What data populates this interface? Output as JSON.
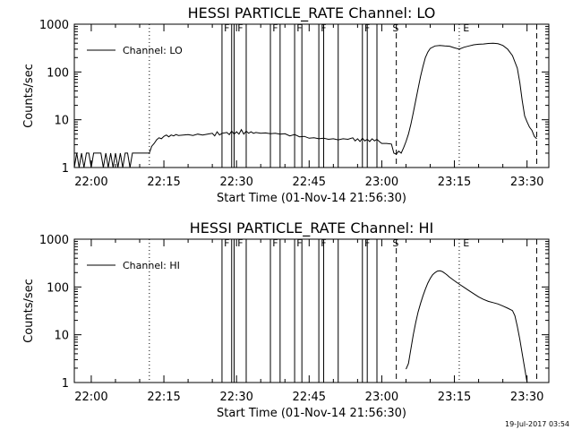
{
  "figure": {
    "timestamp": "19-Jul-2017 03:54"
  },
  "chart_data": [
    {
      "type": "line",
      "title": "HESSI PARTICLE_RATE Channel: LO",
      "xlabel": "Start Time (01-Nov-14 21:56:30)",
      "ylabel": "Counts/sec",
      "yscale": "log",
      "ylim": [
        1,
        1000
      ],
      "ytick_labels": [
        "1",
        "10",
        "100",
        "1000"
      ],
      "ytick_values": [
        1,
        10,
        100,
        1000
      ],
      "xlim": [
        "21:56:30",
        "23:34:30"
      ],
      "xtick_labels": [
        "22:00",
        "22:15",
        "22:30",
        "22:45",
        "23:00",
        "23:15",
        "23:30"
      ],
      "xtick_values": [
        "22:00",
        "22:15",
        "22:30",
        "22:45",
        "23:00",
        "23:15",
        "23:30"
      ],
      "grid": false,
      "legend": {
        "position": "top-left",
        "entries": [
          "Channel: LO"
        ]
      },
      "dotted_markers": [
        "22:12",
        "23:16"
      ],
      "dashed_markers": [
        "23:03",
        "23:32"
      ],
      "flag_lines": [
        "22:27",
        "22:29",
        "22:29.5",
        "22:32",
        "22:37",
        "22:39",
        "22:42",
        "22:43.5",
        "22:47",
        "22:48",
        "22:51",
        "22:56",
        "22:57",
        "22:59"
      ],
      "flag_labels": [
        {
          "text": "F",
          "time": "22:27.4"
        },
        {
          "text": "F",
          "time": "22:30.2"
        },
        {
          "text": "F",
          "time": "22:37.4"
        },
        {
          "text": "F",
          "time": "22:42.4"
        },
        {
          "text": "F",
          "time": "22:47.4"
        },
        {
          "text": "F",
          "time": "22:56.4"
        },
        {
          "text": "S",
          "time": "23:02.2"
        },
        {
          "text": "E",
          "time": "23:16.8"
        }
      ],
      "series": [
        {
          "name": "Channel: LO",
          "points": [
            [
              "21:56:30",
              1
            ],
            [
              "21:57:00",
              2
            ],
            [
              "21:57:30",
              1
            ],
            [
              "21:58:00",
              2
            ],
            [
              "21:58:30",
              1
            ],
            [
              "21:59:00",
              2
            ],
            [
              "21:59:30",
              2
            ],
            [
              "22:00:00",
              1
            ],
            [
              "22:00:30",
              2
            ],
            [
              "22:01:00",
              2
            ],
            [
              "22:01:30",
              2
            ],
            [
              "22:02:00",
              2
            ],
            [
              "22:02:30",
              1
            ],
            [
              "22:03:00",
              2
            ],
            [
              "22:03:30",
              1
            ],
            [
              "22:04:00",
              2
            ],
            [
              "22:04:30",
              1
            ],
            [
              "22:05:00",
              2
            ],
            [
              "22:05:30",
              1
            ],
            [
              "22:06:00",
              2
            ],
            [
              "22:06:30",
              1
            ],
            [
              "22:07:00",
              2
            ],
            [
              "22:07:30",
              2
            ],
            [
              "22:08:00",
              1
            ],
            [
              "22:08:30",
              2
            ],
            [
              "22:09:00",
              2
            ],
            [
              "22:09:30",
              2
            ],
            [
              "22:10:00",
              2
            ],
            [
              "22:10:30",
              2
            ],
            [
              "22:11:00",
              2
            ],
            [
              "22:11:30",
              2
            ],
            [
              "22:12:00",
              2
            ],
            [
              "22:12:30",
              2.8
            ],
            [
              "22:13:00",
              3.2
            ],
            [
              "22:13:30",
              3.8
            ],
            [
              "22:14:00",
              4.2
            ],
            [
              "22:14:30",
              4.0
            ],
            [
              "22:15:00",
              4.5
            ],
            [
              "22:15:30",
              4.8
            ],
            [
              "22:16:00",
              4.4
            ],
            [
              "22:16:30",
              4.8
            ],
            [
              "22:17:00",
              4.6
            ],
            [
              "22:17:30",
              4.9
            ],
            [
              "22:18:00",
              4.7
            ],
            [
              "22:19:00",
              4.8
            ],
            [
              "22:20:00",
              4.9
            ],
            [
              "22:21:00",
              4.7
            ],
            [
              "22:22:00",
              5.0
            ],
            [
              "22:23:00",
              4.8
            ],
            [
              "22:24:00",
              5.0
            ],
            [
              "22:25:00",
              5.2
            ],
            [
              "22:25:30",
              4.6
            ],
            [
              "22:26:00",
              5.6
            ],
            [
              "22:26:30",
              4.8
            ],
            [
              "22:27:00",
              5.2
            ],
            [
              "22:28:00",
              5.4
            ],
            [
              "22:28:30",
              4.9
            ],
            [
              "22:29:00",
              5.8
            ],
            [
              "22:29:30",
              5.0
            ],
            [
              "22:30:00",
              5.6
            ],
            [
              "22:30:30",
              5.0
            ],
            [
              "22:31:00",
              6.2
            ],
            [
              "22:31:30",
              5.0
            ],
            [
              "22:32:00",
              5.8
            ],
            [
              "22:32:30",
              5.2
            ],
            [
              "22:33:00",
              5.6
            ],
            [
              "22:33:30",
              5.2
            ],
            [
              "22:34:00",
              5.4
            ],
            [
              "22:35:00",
              5.2
            ],
            [
              "22:36:00",
              5.3
            ],
            [
              "22:37:00",
              5.1
            ],
            [
              "22:38:00",
              5.2
            ],
            [
              "22:39:00",
              5.0
            ],
            [
              "22:40:00",
              5.1
            ],
            [
              "22:41:00",
              4.6
            ],
            [
              "22:42:00",
              4.9
            ],
            [
              "22:43:00",
              4.4
            ],
            [
              "22:44:00",
              4.5
            ],
            [
              "22:45:00",
              4.1
            ],
            [
              "22:46:00",
              4.2
            ],
            [
              "22:47:00",
              4.0
            ],
            [
              "22:48:00",
              4.1
            ],
            [
              "22:49:00",
              3.9
            ],
            [
              "22:50:00",
              4.0
            ],
            [
              "22:51:00",
              3.8
            ],
            [
              "22:52:00",
              4.0
            ],
            [
              "22:53:00",
              3.9
            ],
            [
              "22:54:00",
              4.2
            ],
            [
              "22:54:30",
              3.6
            ],
            [
              "22:55:00",
              4.0
            ],
            [
              "22:55:30",
              3.5
            ],
            [
              "22:56:00",
              4.1
            ],
            [
              "22:56:30",
              3.6
            ],
            [
              "22:57:00",
              3.9
            ],
            [
              "22:57:30",
              3.5
            ],
            [
              "22:58:00",
              4.0
            ],
            [
              "22:58:30",
              3.6
            ],
            [
              "22:59:00",
              3.9
            ],
            [
              "22:59:30",
              3.5
            ],
            [
              "23:00:00",
              3.2
            ],
            [
              "23:01:00",
              3.2
            ],
            [
              "23:02:00",
              3.1
            ],
            [
              "23:02:30",
              2.0
            ],
            [
              "23:03:00",
              1.9
            ],
            [
              "23:03:30",
              2.2
            ],
            [
              "23:04:00",
              2.0
            ],
            [
              "23:04:30",
              2.6
            ],
            [
              "23:05:00",
              3.5
            ],
            [
              "23:05:30",
              5.0
            ],
            [
              "23:06:00",
              8
            ],
            [
              "23:06:30",
              14
            ],
            [
              "23:07:00",
              25
            ],
            [
              "23:07:30",
              45
            ],
            [
              "23:08:00",
              80
            ],
            [
              "23:08:30",
              130
            ],
            [
              "23:09:00",
              200
            ],
            [
              "23:09:30",
              260
            ],
            [
              "23:10:00",
              310
            ],
            [
              "23:11:00",
              350
            ],
            [
              "23:12:00",
              360
            ],
            [
              "23:13:00",
              350
            ],
            [
              "23:14:00",
              345
            ],
            [
              "23:15:00",
              320
            ],
            [
              "23:16:00",
              300
            ],
            [
              "23:17:00",
              330
            ],
            [
              "23:18:00",
              350
            ],
            [
              "23:19:00",
              370
            ],
            [
              "23:20:00",
              380
            ],
            [
              "23:21:00",
              385
            ],
            [
              "23:22:00",
              395
            ],
            [
              "23:23:00",
              400
            ],
            [
              "23:24:00",
              390
            ],
            [
              "23:25:00",
              360
            ],
            [
              "23:26:00",
              300
            ],
            [
              "23:27:00",
              220
            ],
            [
              "23:28:00",
              120
            ],
            [
              "23:28:30",
              60
            ],
            [
              "23:29:00",
              25
            ],
            [
              "23:29:30",
              12
            ],
            [
              "23:30:00",
              9
            ],
            [
              "23:30:30",
              7
            ],
            [
              "23:31:00",
              6
            ],
            [
              "23:31:30",
              4.5
            ],
            [
              "23:32:00",
              4
            ]
          ]
        }
      ]
    },
    {
      "type": "line",
      "title": "HESSI PARTICLE_RATE Channel: HI",
      "xlabel": "Start Time (01-Nov-14 21:56:30)",
      "ylabel": "Counts/sec",
      "yscale": "log",
      "ylim": [
        1,
        1000
      ],
      "ytick_labels": [
        "1",
        "10",
        "100",
        "1000"
      ],
      "ytick_values": [
        1,
        10,
        100,
        1000
      ],
      "xlim": [
        "21:56:30",
        "23:34:30"
      ],
      "xtick_labels": [
        "22:00",
        "22:15",
        "22:30",
        "22:45",
        "23:00",
        "23:15",
        "23:30"
      ],
      "xtick_values": [
        "22:00",
        "22:15",
        "22:30",
        "22:45",
        "23:00",
        "23:15",
        "23:30"
      ],
      "grid": false,
      "legend": {
        "position": "top-left",
        "entries": [
          "Channel: HI"
        ]
      },
      "dotted_markers": [
        "22:12",
        "23:16"
      ],
      "dashed_markers": [
        "23:03",
        "23:32"
      ],
      "flag_lines": [
        "22:27",
        "22:29",
        "22:29.5",
        "22:32",
        "22:37",
        "22:39",
        "22:42",
        "22:43.5",
        "22:47",
        "22:48",
        "22:51",
        "22:56",
        "22:57",
        "22:59"
      ],
      "flag_labels": [
        {
          "text": "F",
          "time": "22:27.4"
        },
        {
          "text": "F",
          "time": "22:30.2"
        },
        {
          "text": "F",
          "time": "22:37.4"
        },
        {
          "text": "F",
          "time": "22:42.4"
        },
        {
          "text": "F",
          "time": "22:47.4"
        },
        {
          "text": "F",
          "time": "22:56.4"
        },
        {
          "text": "S",
          "time": "23:02.2"
        },
        {
          "text": "E",
          "time": "23:16.8"
        }
      ],
      "series": [
        {
          "name": "Channel: HI",
          "points": [
            [
              "23:05:00",
              1.9
            ],
            [
              "23:05:30",
              2.5
            ],
            [
              "23:06:00",
              5
            ],
            [
              "23:06:30",
              10
            ],
            [
              "23:07:00",
              18
            ],
            [
              "23:07:30",
              30
            ],
            [
              "23:08:00",
              45
            ],
            [
              "23:08:30",
              65
            ],
            [
              "23:09:00",
              90
            ],
            [
              "23:09:30",
              120
            ],
            [
              "23:10:00",
              150
            ],
            [
              "23:10:30",
              180
            ],
            [
              "23:11:00",
              200
            ],
            [
              "23:11:30",
              215
            ],
            [
              "23:12:00",
              218
            ],
            [
              "23:12:30",
              210
            ],
            [
              "23:13:00",
              195
            ],
            [
              "23:13:30",
              178
            ],
            [
              "23:14:00",
              160
            ],
            [
              "23:15:00",
              135
            ],
            [
              "23:16:00",
              115
            ],
            [
              "23:17:00",
              98
            ],
            [
              "23:18:00",
              84
            ],
            [
              "23:19:00",
              72
            ],
            [
              "23:20:00",
              62
            ],
            [
              "23:21:00",
              55
            ],
            [
              "23:22:00",
              50
            ],
            [
              "23:23:00",
              47
            ],
            [
              "23:24:00",
              44
            ],
            [
              "23:25:00",
              40
            ],
            [
              "23:26:00",
              36
            ],
            [
              "23:27:00",
              32
            ],
            [
              "23:27:30",
              25
            ],
            [
              "23:28:00",
              15
            ],
            [
              "23:28:30",
              8
            ],
            [
              "23:29:00",
              4
            ],
            [
              "23:29:30",
              2
            ],
            [
              "23:30:00",
              1
            ]
          ]
        }
      ]
    }
  ]
}
